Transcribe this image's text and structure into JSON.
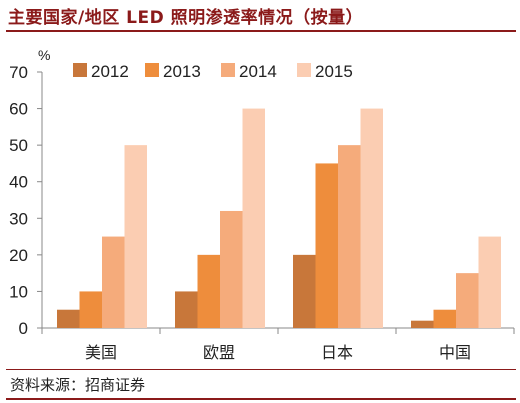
{
  "title": "主要国家/地区 LED 照明渗透率情况（按量）",
  "source": "资料来源：招商证券",
  "chart_data": {
    "type": "bar",
    "title": "主要国家/地区 LED 照明渗透率情况（按量）",
    "ylabel": "%",
    "ylim": [
      0,
      70
    ],
    "yticks": [
      0,
      10,
      20,
      30,
      40,
      50,
      60,
      70
    ],
    "categories": [
      "美国",
      "欧盟",
      "日本",
      "中国"
    ],
    "series": [
      {
        "name": "2012",
        "values": [
          5,
          10,
          20,
          2
        ],
        "color": "#c8773a"
      },
      {
        "name": "2013",
        "values": [
          10,
          20,
          45,
          5
        ],
        "color": "#ee8d3c"
      },
      {
        "name": "2014",
        "values": [
          25,
          32,
          50,
          15
        ],
        "color": "#f5ab7b"
      },
      {
        "name": "2015",
        "values": [
          50,
          60,
          60,
          25
        ],
        "color": "#fbcdb2"
      }
    ],
    "legend": "top",
    "grid": false
  }
}
